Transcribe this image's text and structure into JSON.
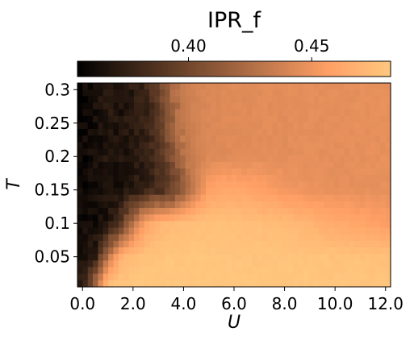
{
  "chart_data": {
    "type": "heatmap",
    "colorbar": {
      "label": "IPR_f",
      "ticks": [
        0.4,
        0.45
      ],
      "tick_labels": [
        "0.40",
        "0.45"
      ],
      "range": [
        0.355,
        0.482
      ],
      "colormap": "copper",
      "placement": "top"
    },
    "xlabel": "U",
    "ylabel": "T",
    "xlim": [
      -0.2,
      12.2
    ],
    "ylim": [
      0.005,
      0.31
    ],
    "x_ticks": [
      0,
      2,
      4,
      6,
      8,
      10,
      12
    ],
    "x_tick_labels": [
      "0.0",
      "2.0",
      "4.0",
      "6.0",
      "8.0",
      "10.0",
      "12.0"
    ],
    "y_ticks": [
      0.05,
      0.1,
      0.15,
      0.2,
      0.25,
      0.3
    ],
    "y_tick_labels": [
      "0.05",
      "0.1",
      "0.15",
      "0.2",
      "0.25",
      "0.3"
    ],
    "grid": false,
    "cols": 61,
    "rows": 31,
    "u_values": [
      0,
      0.5,
      1,
      1.5,
      2,
      2.5,
      3,
      3.5,
      4,
      4.5,
      5,
      5.5,
      6,
      6.5,
      7,
      7.5,
      8,
      8.5,
      9,
      9.5,
      10,
      10.5,
      11,
      11.5,
      12
    ],
    "t_values": [
      0.3,
      0.25,
      0.2,
      0.15,
      0.1,
      0.05,
      0.01
    ],
    "grid_values": [
      [
        0.36,
        0.365,
        0.37,
        0.368,
        0.372,
        0.378,
        0.395,
        0.42,
        0.435,
        0.44,
        0.442,
        0.443,
        0.444,
        0.444,
        0.445,
        0.445,
        0.445,
        0.446,
        0.446,
        0.446,
        0.446,
        0.446,
        0.447,
        0.447,
        0.447
      ],
      [
        0.36,
        0.364,
        0.369,
        0.367,
        0.371,
        0.376,
        0.39,
        0.415,
        0.432,
        0.439,
        0.442,
        0.443,
        0.444,
        0.444,
        0.445,
        0.445,
        0.445,
        0.446,
        0.446,
        0.446,
        0.446,
        0.446,
        0.447,
        0.447,
        0.447
      ],
      [
        0.36,
        0.363,
        0.368,
        0.366,
        0.37,
        0.374,
        0.384,
        0.405,
        0.428,
        0.438,
        0.442,
        0.443,
        0.444,
        0.444,
        0.445,
        0.445,
        0.445,
        0.446,
        0.446,
        0.446,
        0.446,
        0.446,
        0.447,
        0.447,
        0.447
      ],
      [
        0.36,
        0.362,
        0.366,
        0.366,
        0.37,
        0.375,
        0.382,
        0.392,
        0.412,
        0.438,
        0.458,
        0.462,
        0.462,
        0.46,
        0.458,
        0.455,
        0.452,
        0.45,
        0.449,
        0.448,
        0.447,
        0.447,
        0.447,
        0.447,
        0.447
      ],
      [
        0.362,
        0.363,
        0.368,
        0.388,
        0.43,
        0.46,
        0.47,
        0.474,
        0.476,
        0.477,
        0.477,
        0.477,
        0.477,
        0.476,
        0.476,
        0.475,
        0.474,
        0.472,
        0.469,
        0.466,
        0.464,
        0.462,
        0.46,
        0.458,
        0.456
      ],
      [
        0.364,
        0.372,
        0.43,
        0.468,
        0.476,
        0.478,
        0.479,
        0.48,
        0.48,
        0.48,
        0.48,
        0.48,
        0.48,
        0.48,
        0.479,
        0.479,
        0.479,
        0.479,
        0.479,
        0.479,
        0.478,
        0.478,
        0.478,
        0.478,
        0.477
      ],
      [
        0.372,
        0.42,
        0.476,
        0.48,
        0.481,
        0.481,
        0.481,
        0.481,
        0.481,
        0.481,
        0.481,
        0.481,
        0.481,
        0.481,
        0.481,
        0.481,
        0.481,
        0.481,
        0.481,
        0.481,
        0.481,
        0.481,
        0.48,
        0.48,
        0.48
      ]
    ]
  }
}
